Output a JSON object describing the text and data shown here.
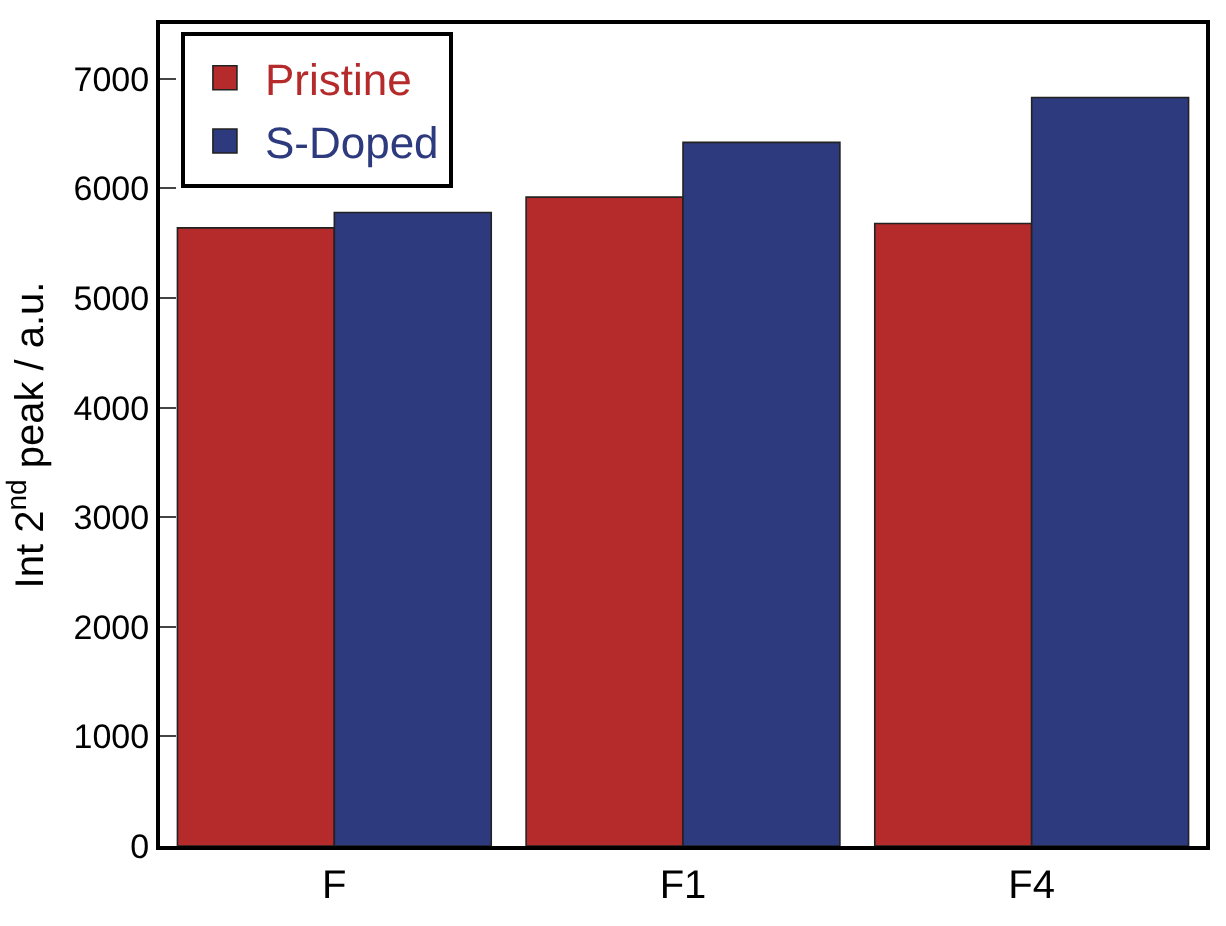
{
  "chart_data": {
    "type": "bar",
    "ylabel": "Int 2$^{nd}$ peak / a.u.",
    "categories": [
      "F",
      "F1",
      "F4"
    ],
    "series": [
      {
        "name": "Pristine",
        "color": "#b52a2a",
        "values": [
          5640,
          5920,
          5680
        ]
      },
      {
        "name": "S-Doped",
        "color": "#2e3a7e",
        "values": [
          5780,
          6420,
          6830
        ]
      }
    ],
    "ylim": [
      0,
      7500
    ],
    "yticks": [
      0,
      1000,
      2000,
      3000,
      4000,
      5000,
      6000,
      7000
    ],
    "legend": "top left"
  }
}
